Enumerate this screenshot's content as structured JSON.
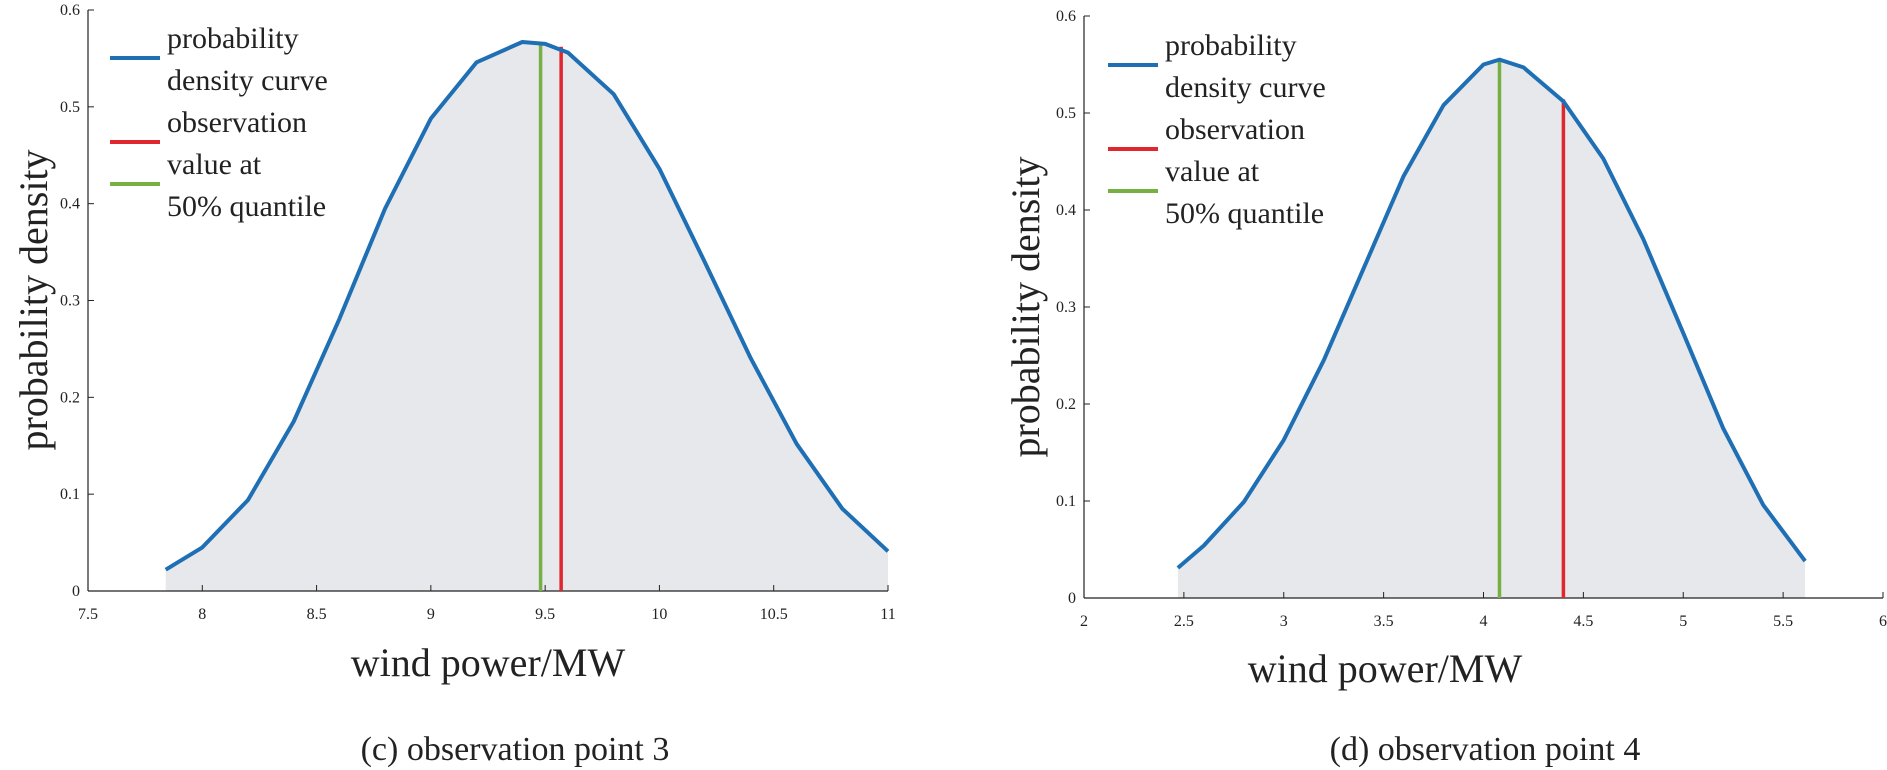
{
  "chart_data": [
    {
      "type": "area",
      "caption": "(c) observation point 3",
      "xlabel": "wind power/MW",
      "ylabel": "probability density",
      "xlim": [
        7.5,
        11
      ],
      "ylim": [
        0,
        0.6
      ],
      "xticks": [
        "7.5",
        "8",
        "8.5",
        "9",
        "9.5",
        "10",
        "10.5",
        "11"
      ],
      "yticks": [
        "0",
        "0.1",
        "0.2",
        "0.3",
        "0.4",
        "0.5",
        "0.6"
      ],
      "grid": false,
      "legend_position": "top-left",
      "series": [
        {
          "name": "probability density curve",
          "color": "#1f6fb4",
          "x": [
            7.84,
            8.0,
            8.2,
            8.4,
            8.6,
            8.8,
            9.0,
            9.2,
            9.4,
            9.5,
            9.6,
            9.8,
            10.0,
            10.2,
            10.4,
            10.6,
            10.8,
            11.0
          ],
          "y": [
            0.022,
            0.045,
            0.094,
            0.175,
            0.281,
            0.395,
            0.488,
            0.546,
            0.567,
            0.565,
            0.556,
            0.513,
            0.436,
            0.339,
            0.24,
            0.152,
            0.085,
            0.041
          ]
        }
      ],
      "markers": [
        {
          "name": "observation",
          "color": "#e0262e",
          "x": 9.57,
          "y": 0.562
        },
        {
          "name": "value at 50% quantile",
          "color": "#76b043",
          "x": 9.48,
          "y": 0.566
        }
      ],
      "legend": [
        {
          "lines": [
            "probability",
            "density curve"
          ],
          "color": "#1f6fb4"
        },
        {
          "lines": [
            "observation"
          ],
          "color": "#e0262e"
        },
        {
          "lines": [
            "value at",
            "50% quantile"
          ],
          "color": "#76b043"
        }
      ],
      "fill_color": "#e6e8eb"
    },
    {
      "type": "area",
      "caption": "(d) observation point 4",
      "xlabel": "wind power/MW",
      "ylabel": "probability density",
      "xlim": [
        2,
        6
      ],
      "ylim": [
        0,
        0.6
      ],
      "xticks": [
        "2",
        "2.5",
        "3",
        "3.5",
        "4",
        "4.5",
        "5",
        "5.5",
        "6"
      ],
      "yticks": [
        "0",
        "0.1",
        "0.2",
        "0.3",
        "0.4",
        "0.5",
        "0.6"
      ],
      "grid": false,
      "legend_position": "top-left",
      "series": [
        {
          "name": "probability density curve",
          "color": "#1f6fb4",
          "x": [
            2.47,
            2.6,
            2.8,
            3.0,
            3.2,
            3.4,
            3.6,
            3.8,
            4.0,
            4.08,
            4.2,
            4.4,
            4.6,
            4.8,
            5.0,
            5.2,
            5.4,
            5.61
          ],
          "y": [
            0.031,
            0.054,
            0.099,
            0.163,
            0.245,
            0.34,
            0.435,
            0.508,
            0.55,
            0.555,
            0.547,
            0.512,
            0.453,
            0.37,
            0.273,
            0.175,
            0.096,
            0.038
          ]
        }
      ],
      "markers": [
        {
          "name": "observation",
          "color": "#e0262e",
          "x": 4.4,
          "y": 0.514
        },
        {
          "name": "value at 50% quantile",
          "color": "#76b043",
          "x": 4.08,
          "y": 0.555
        }
      ],
      "legend": [
        {
          "lines": [
            "probability",
            "density curve"
          ],
          "color": "#1f6fb4"
        },
        {
          "lines": [
            "observation"
          ],
          "color": "#e0262e"
        },
        {
          "lines": [
            "value at",
            "50% quantile"
          ],
          "color": "#76b043"
        }
      ],
      "fill_color": "#e6e8eb"
    }
  ]
}
